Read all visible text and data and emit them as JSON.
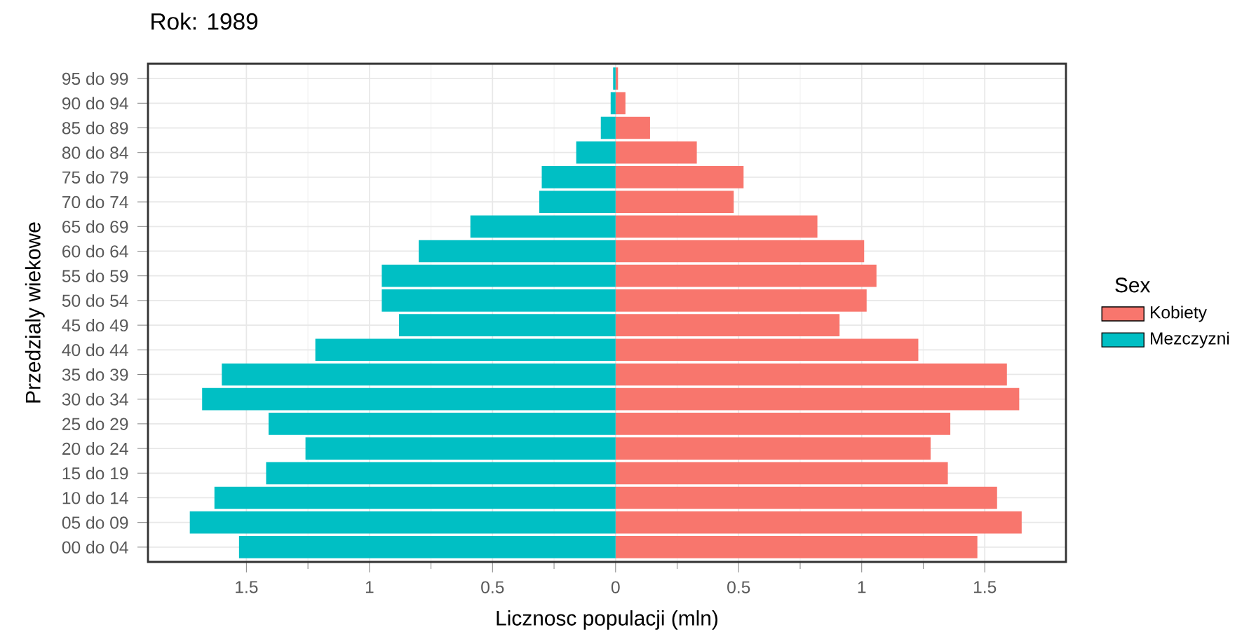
{
  "chart_data": {
    "type": "bar",
    "orientation": "horizontal",
    "stacked": true,
    "title": "Rok: 1989",
    "xlabel": "Licznosc populacji (mln)",
    "ylabel": "Przedzialy wiekowe",
    "legend_title": "Sex",
    "legend": "right",
    "grid": true,
    "categories": [
      "95 do 99",
      "90 do 94",
      "85 do 89",
      "80 do 84",
      "75 do 79",
      "70 do 74",
      "65 do 69",
      "60 do 64",
      "55 do 59",
      "50 do 54",
      "45 do 49",
      "40 do 44",
      "35 do 39",
      "30 do 34",
      "25 do 29",
      "20 do 24",
      "15 do 19",
      "10 do 14",
      "05 do 09",
      "00 do 04"
    ],
    "series": [
      {
        "name": "Kobiety",
        "color": "#f8766d",
        "values": [
          0.01,
          0.04,
          0.14,
          0.33,
          0.52,
          0.48,
          0.82,
          1.01,
          1.06,
          1.02,
          0.91,
          1.23,
          1.59,
          1.64,
          1.36,
          1.28,
          1.35,
          1.55,
          1.65,
          1.47
        ]
      },
      {
        "name": "Mezczyzni",
        "color": "#00bfc4",
        "values": [
          -0.01,
          -0.02,
          -0.06,
          -0.16,
          -0.3,
          -0.31,
          -0.59,
          -0.8,
          -0.95,
          -0.95,
          -0.88,
          -1.22,
          -1.6,
          -1.68,
          -1.41,
          -1.26,
          -1.42,
          -1.63,
          -1.73,
          -1.53
        ]
      }
    ],
    "xlim": [
      -1.9,
      1.83
    ],
    "xticks": [
      {
        "value": -1.5,
        "label": "1.5"
      },
      {
        "value": -1,
        "label": "1"
      },
      {
        "value": -0.5,
        "label": "0.5"
      },
      0,
      0.5,
      1,
      1.5
    ]
  }
}
